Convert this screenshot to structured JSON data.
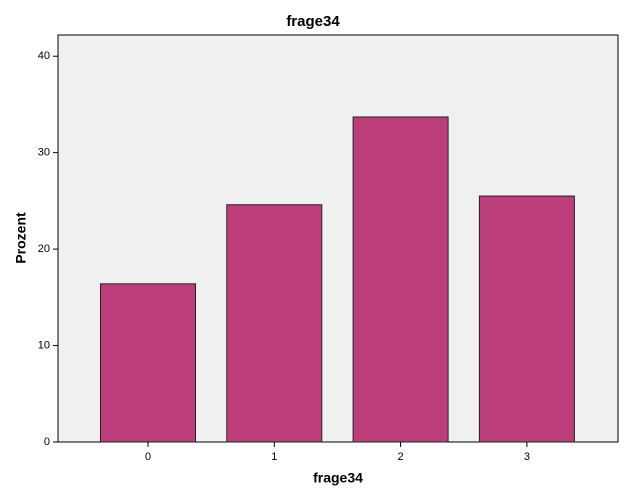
{
  "chart_data": {
    "type": "bar",
    "title": "frage34",
    "x_label": "frage34",
    "y_label": "Prozent",
    "categories": [
      "0",
      "1",
      "2",
      "3"
    ],
    "values": [
      16.4,
      24.6,
      33.7,
      25.5
    ],
    "color": "#bc3f7c",
    "ylim": [
      0,
      42.2
    ],
    "yticks": [
      0,
      10,
      20,
      30,
      40
    ],
    "grid": false
  }
}
